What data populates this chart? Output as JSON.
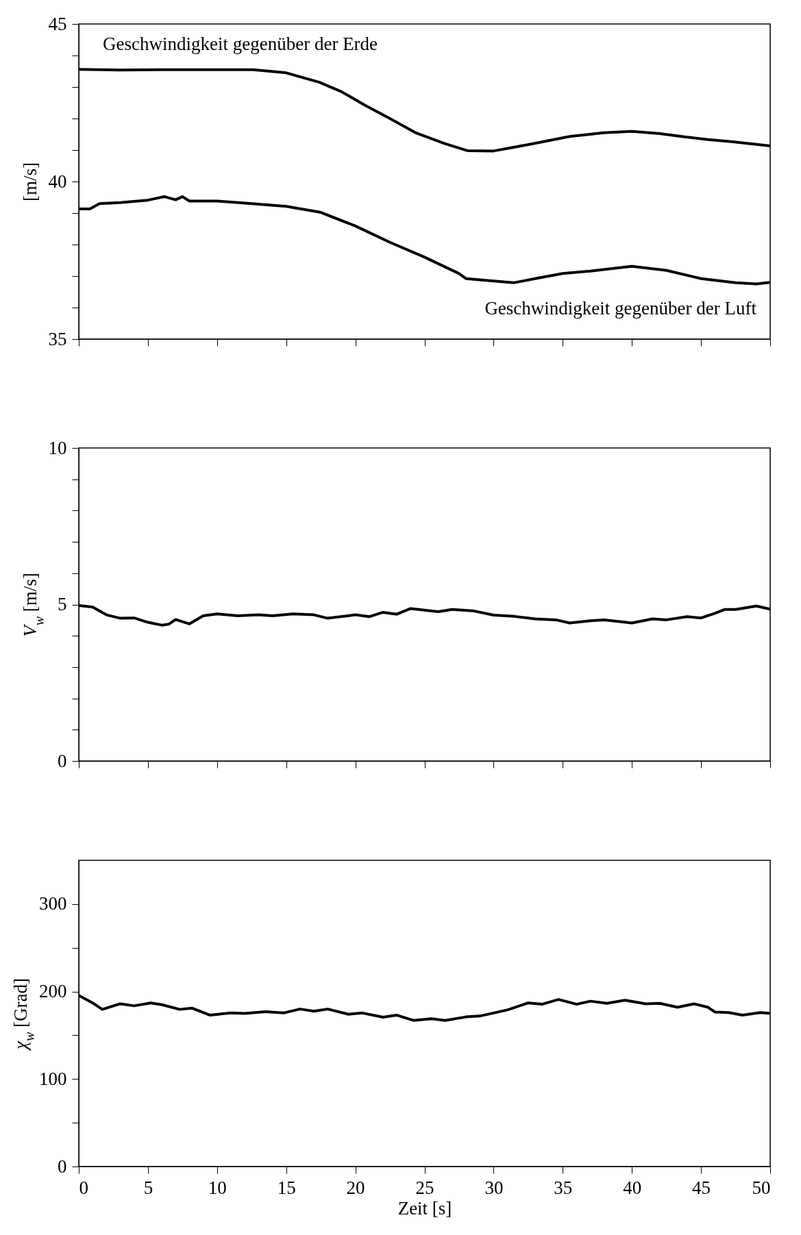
{
  "chart_data": [
    {
      "type": "line",
      "ylabel": "[m/s]",
      "xlim": [
        0,
        50
      ],
      "xticks": [
        0,
        5,
        10,
        15,
        20,
        25,
        30,
        35,
        40,
        45,
        50
      ],
      "ylim": [
        35,
        45
      ],
      "yticks": [
        35,
        {
          "value": 36,
          "label": null
        },
        {
          "value": 37,
          "label": null
        },
        {
          "value": 38,
          "label": null
        },
        {
          "value": 39,
          "label": null
        },
        40,
        {
          "value": 41,
          "label": null
        },
        {
          "value": 42,
          "label": null
        },
        {
          "value": 43,
          "label": null
        },
        {
          "value": 44,
          "label": null
        },
        45
      ],
      "tick_labels": "y",
      "series": [
        {
          "name": "Geschwindigkeit gegenüber der Erde",
          "color": "#000000",
          "x": [
            0,
            3,
            6,
            9,
            12.6,
            15,
            17.4,
            19,
            20.75,
            22.5,
            24.4,
            26.5,
            28.1,
            30,
            32.6,
            35.5,
            38,
            40,
            42,
            43.6,
            45.5,
            47.3,
            50
          ],
          "values": [
            43.56,
            43.54,
            43.55,
            43.55,
            43.55,
            43.45,
            43.15,
            42.85,
            42.41,
            42.0,
            41.54,
            41.2,
            40.98,
            40.97,
            41.18,
            41.43,
            41.55,
            41.59,
            41.52,
            41.43,
            41.33,
            41.26,
            41.13
          ]
        },
        {
          "name": "Geschwindigkeit gegenüber der Luft",
          "color": "#000000",
          "x": [
            0,
            0.8,
            1.5,
            3,
            5,
            6.2,
            7,
            7.5,
            8,
            10,
            12.5,
            15,
            17.5,
            20,
            22.5,
            25,
            27.5,
            28,
            30,
            31.5,
            33,
            35,
            37,
            40,
            42.5,
            45,
            47.5,
            49,
            50
          ],
          "values": [
            39.13,
            39.13,
            39.3,
            39.33,
            39.41,
            39.52,
            39.42,
            39.52,
            39.38,
            39.38,
            39.3,
            39.21,
            39.02,
            38.59,
            38.07,
            37.6,
            37.08,
            36.92,
            36.84,
            36.79,
            36.92,
            37.08,
            37.16,
            37.31,
            37.18,
            36.92,
            36.79,
            36.75,
            36.8
          ]
        }
      ]
    },
    {
      "type": "line",
      "ylabel": "V$_{w}$ [m/s]",
      "xlim": [
        0,
        50
      ],
      "xticks": [
        0,
        5,
        10,
        15,
        20,
        25,
        30,
        35,
        40,
        45,
        50
      ],
      "ylim": [
        0,
        10
      ],
      "yticks": [
        0,
        {
          "value": 1,
          "label": null
        },
        {
          "value": 2,
          "label": null
        },
        {
          "value": 3,
          "label": null
        },
        {
          "value": 4,
          "label": null
        },
        5,
        {
          "value": 6,
          "label": null
        },
        {
          "value": 7,
          "label": null
        },
        {
          "value": 8,
          "label": null
        },
        {
          "value": 9,
          "label": null
        },
        10
      ],
      "tick_labels": "y",
      "series": [
        {
          "color": "#000000",
          "x": [
            0,
            1,
            2,
            3,
            4,
            5,
            6,
            6.5,
            7,
            8,
            9,
            10,
            11.5,
            13,
            14,
            15.5,
            17,
            18,
            20,
            21,
            22,
            23,
            24,
            26,
            27,
            28.5,
            30,
            31.5,
            33,
            34.5,
            35.5,
            37,
            38,
            40,
            41.5,
            42.5,
            44,
            45,
            46,
            46.7,
            47.5,
            49,
            50
          ],
          "values": [
            4.97,
            4.92,
            4.67,
            4.56,
            4.57,
            4.43,
            4.34,
            4.37,
            4.52,
            4.38,
            4.64,
            4.7,
            4.64,
            4.67,
            4.64,
            4.7,
            4.67,
            4.56,
            4.67,
            4.61,
            4.75,
            4.69,
            4.87,
            4.77,
            4.84,
            4.8,
            4.66,
            4.62,
            4.54,
            4.51,
            4.41,
            4.48,
            4.51,
            4.41,
            4.54,
            4.51,
            4.61,
            4.57,
            4.72,
            4.84,
            4.84,
            4.95,
            4.85
          ]
        }
      ]
    },
    {
      "type": "line",
      "xlabel": "Zeit [s]",
      "ylabel": "χ$_{w}$ [Grad]",
      "xlim": [
        0,
        50
      ],
      "xticks": [
        0,
        5,
        10,
        15,
        20,
        25,
        30,
        35,
        40,
        45,
        50
      ],
      "ylim": [
        0,
        350
      ],
      "yticks": [
        0,
        {
          "value": 50,
          "label": null
        },
        100,
        {
          "value": 150,
          "label": null
        },
        200,
        {
          "value": 250,
          "label": null
        },
        300
      ],
      "series": [
        {
          "color": "#000000",
          "x": [
            0,
            1,
            1.7,
            3,
            4,
            5.2,
            6,
            7.3,
            8.2,
            9.5,
            11,
            12,
            13.5,
            14.8,
            16,
            17,
            18,
            19.5,
            20.5,
            22,
            23,
            24.2,
            25.5,
            26.5,
            28,
            29,
            31,
            32.5,
            33.5,
            34.7,
            36,
            37,
            38.2,
            39.5,
            41,
            42,
            43.3,
            44.5,
            45.5,
            46,
            47,
            48,
            49.3,
            50
          ],
          "values": [
            195.5,
            187,
            179.6,
            186,
            183.7,
            187,
            185,
            179.6,
            181,
            173,
            175.5,
            175,
            177,
            175.5,
            180,
            177.5,
            180,
            174,
            175.5,
            170.7,
            173,
            167,
            169,
            167,
            171,
            172,
            179,
            187,
            185.5,
            191,
            185.5,
            189,
            186.6,
            190,
            186,
            186.6,
            182,
            186,
            182,
            176.6,
            176,
            173,
            176,
            175
          ]
        }
      ]
    }
  ]
}
